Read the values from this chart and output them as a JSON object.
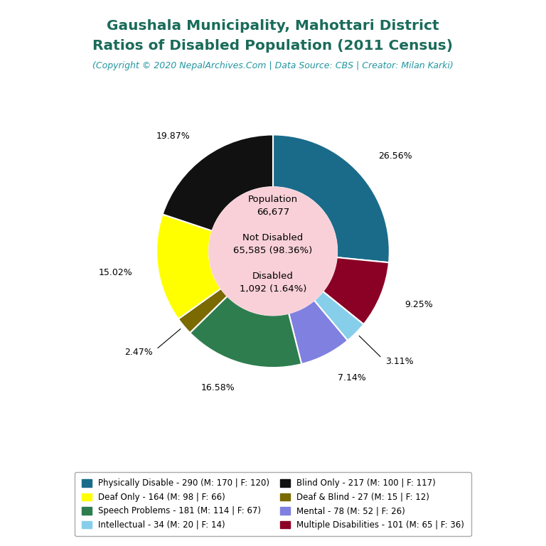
{
  "title_line1": "Gaushala Municipality, Mahottari District",
  "title_line2": "Ratios of Disabled Population (2011 Census)",
  "subtitle": "(Copyright © 2020 NepalArchives.Com | Data Source: CBS | Creator: Milan Karki)",
  "title_color": "#1a6b5a",
  "subtitle_color": "#2196a0",
  "center_bg": "#f9d0d8",
  "slices": [
    {
      "label": "Physically Disable - 290 (M: 170 | F: 120)",
      "value": 290,
      "color": "#1a6b8a",
      "pct": "26.56%"
    },
    {
      "label": "Multiple Disabilities - 101 (M: 65 | F: 36)",
      "value": 101,
      "color": "#8b0025",
      "pct": "9.25%"
    },
    {
      "label": "Intellectual - 34 (M: 20 | F: 14)",
      "value": 34,
      "color": "#87ceeb",
      "pct": "3.11%"
    },
    {
      "label": "Mental - 78 (M: 52 | F: 26)",
      "value": 78,
      "color": "#8080e0",
      "pct": "7.14%"
    },
    {
      "label": "Speech Problems - 181 (M: 114 | F: 67)",
      "value": 181,
      "color": "#2e7d4f",
      "pct": "16.58%"
    },
    {
      "label": "Deaf & Blind - 27 (M: 15 | F: 12)",
      "value": 27,
      "color": "#7a6a00",
      "pct": "2.47%"
    },
    {
      "label": "Deaf Only - 164 (M: 98 | F: 66)",
      "value": 164,
      "color": "#ffff00",
      "pct": "15.02%"
    },
    {
      "label": "Blind Only - 217 (M: 100 | F: 117)",
      "value": 217,
      "color": "#111111",
      "pct": "19.87%"
    }
  ],
  "legend_order_col1": [
    0,
    6,
    4,
    2
  ],
  "legend_order_col2": [
    7,
    5,
    3,
    1
  ],
  "center_lines": [
    "Population",
    "66,677",
    "",
    "Not Disabled",
    "65,585 (98.36%)",
    "",
    "Disabled",
    "1,092 (1.64%)"
  ],
  "figsize": [
    7.68,
    7.68
  ],
  "dpi": 100
}
